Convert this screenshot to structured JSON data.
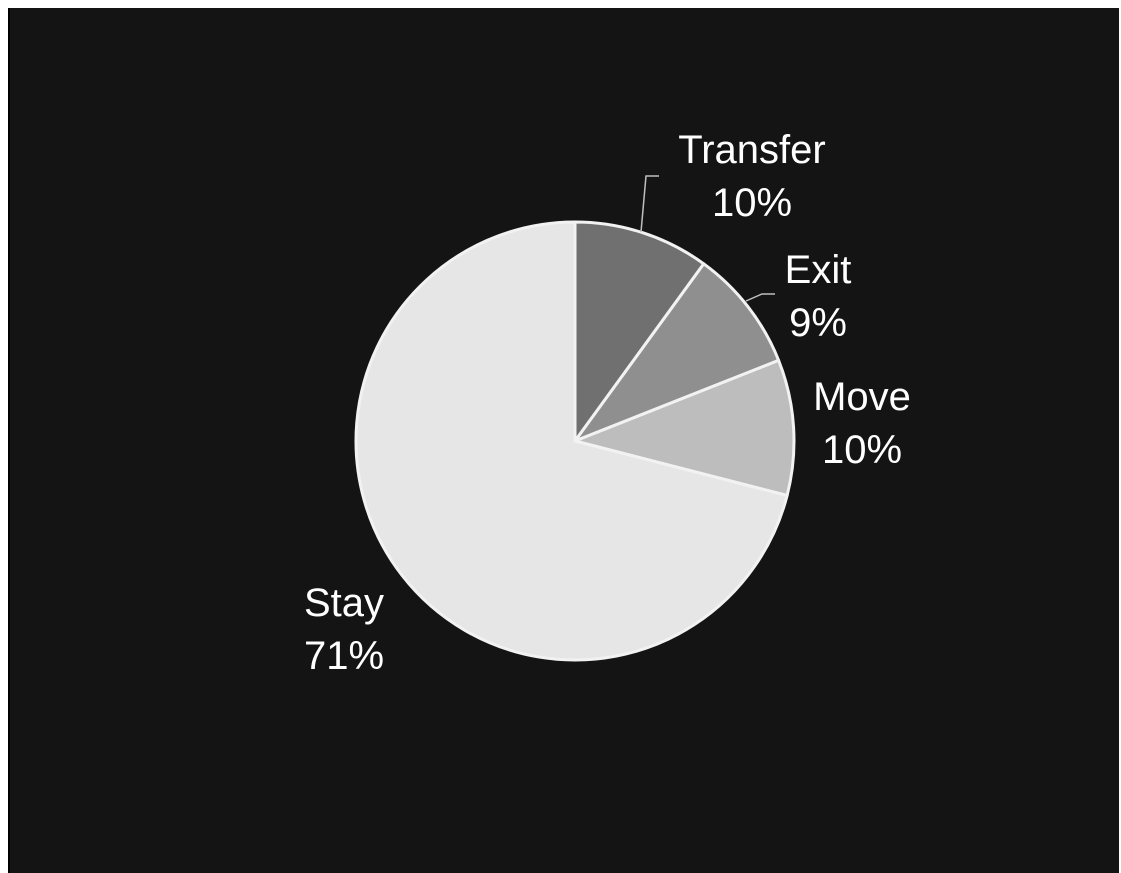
{
  "chart_data": {
    "type": "pie",
    "title": "",
    "slices": [
      {
        "name": "Transfer",
        "value": 10,
        "label": "10%",
        "color": "#707070"
      },
      {
        "name": "Exit",
        "value": 9,
        "label": "9%",
        "color": "#8f8f8f"
      },
      {
        "name": "Move",
        "value": 10,
        "label": "10%",
        "color": "#bdbdbd"
      },
      {
        "name": "Stay",
        "value": 71,
        "label": "71%",
        "color": "#e6e6e6"
      }
    ],
    "background": "#141414",
    "slice_border": "#f2f2f2",
    "text_color": "#ffffff"
  }
}
